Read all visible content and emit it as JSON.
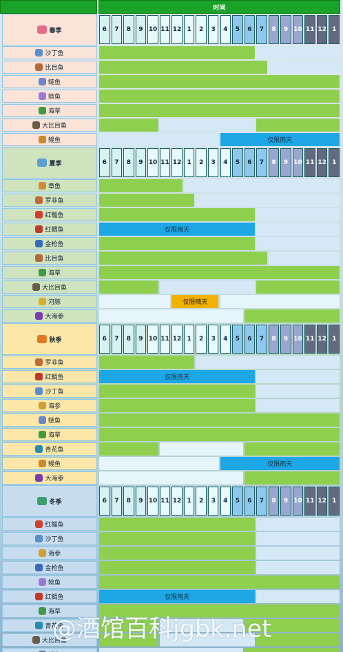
{
  "header": {
    "time_label": "时间"
  },
  "hours": [
    "6",
    "7",
    "8",
    "9",
    "10",
    "11",
    "12",
    "1",
    "2",
    "3",
    "4",
    "5",
    "6",
    "7",
    "8",
    "9",
    "10",
    "11",
    "12",
    "1"
  ],
  "colors": {
    "spring": "#fbe3d8",
    "summer": "#cfe3bf",
    "autumn": "#fde7a8",
    "winter": "#c8dcef",
    "active": "#8fcf4e",
    "inactive": "#d4e8f6",
    "rain": "#1da7e5",
    "sun": "#f2b100",
    "header": "#1aa229"
  },
  "seasons": [
    {
      "name": "春季",
      "icon": "spring-icon",
      "rows": [
        {
          "fish": "沙丁鱼",
          "icon": "sardine-icon",
          "segs": [
            [
              0,
              13,
              "on"
            ],
            [
              13,
              20,
              "off"
            ]
          ]
        },
        {
          "fish": "比目鱼",
          "icon": "flounder-icon",
          "segs": [
            [
              0,
              14,
              "on"
            ],
            [
              14,
              20,
              "off"
            ]
          ]
        },
        {
          "fish": "鲢鱼",
          "icon": "anchovy-icon",
          "segs": [
            [
              0,
              20,
              "on"
            ]
          ]
        },
        {
          "fish": "鲶鱼",
          "icon": "herring-icon",
          "segs": [
            [
              0,
              20,
              "on"
            ]
          ]
        },
        {
          "fish": "海草",
          "icon": "seaweed-icon",
          "segs": [
            [
              0,
              20,
              "on"
            ]
          ]
        },
        {
          "fish": "大比目鱼",
          "icon": "halibut-icon",
          "segs": [
            [
              0,
              5,
              "on"
            ],
            [
              5,
              13,
              "off"
            ],
            [
              13,
              20,
              "on"
            ]
          ]
        },
        {
          "fish": "鳗鱼",
          "icon": "eel-icon",
          "segs": [
            [
              0,
              10,
              "off"
            ],
            [
              10,
              20,
              "rain"
            ]
          ],
          "note": "仅限雨天"
        }
      ]
    },
    {
      "name": "夏季",
      "icon": "summer-icon",
      "rows": [
        {
          "fish": "章鱼",
          "icon": "octopus-icon",
          "segs": [
            [
              0,
              7,
              "on"
            ],
            [
              7,
              20,
              "off"
            ]
          ]
        },
        {
          "fish": "罗非鱼",
          "icon": "tilapia-icon",
          "segs": [
            [
              0,
              8,
              "on"
            ],
            [
              8,
              20,
              "off"
            ]
          ]
        },
        {
          "fish": "红鲻鱼",
          "icon": "red-mullet-icon",
          "segs": [
            [
              0,
              13,
              "on"
            ],
            [
              13,
              20,
              "off"
            ]
          ]
        },
        {
          "fish": "红鲷鱼",
          "icon": "red-snapper-icon",
          "segs": [
            [
              0,
              13,
              "rain"
            ],
            [
              13,
              20,
              "off"
            ]
          ],
          "note": "仅限雨天"
        },
        {
          "fish": "金枪鱼",
          "icon": "tuna-icon",
          "segs": [
            [
              0,
              13,
              "on"
            ],
            [
              13,
              20,
              "off"
            ]
          ]
        },
        {
          "fish": "比目鱼",
          "icon": "flounder-icon",
          "segs": [
            [
              0,
              14,
              "on"
            ],
            [
              14,
              20,
              "off"
            ]
          ]
        },
        {
          "fish": "海草",
          "icon": "seaweed-icon",
          "segs": [
            [
              0,
              20,
              "on"
            ]
          ]
        },
        {
          "fish": "大比目鱼",
          "icon": "halibut-icon",
          "segs": [
            [
              0,
              5,
              "on"
            ],
            [
              5,
              13,
              "off"
            ],
            [
              13,
              20,
              "on"
            ]
          ]
        },
        {
          "fish": "河豚",
          "icon": "pufferfish-icon",
          "segs": [
            [
              0,
              6,
              "offlight"
            ],
            [
              6,
              10,
              "sun"
            ],
            [
              10,
              20,
              "offlight"
            ]
          ],
          "note": "仅限晴天"
        },
        {
          "fish": "大海参",
          "icon": "sea-cucumber-icon",
          "segs": [
            [
              0,
              12,
              "offlight"
            ],
            [
              12,
              20,
              "on"
            ]
          ]
        }
      ]
    },
    {
      "name": "秋季",
      "icon": "autumn-icon",
      "rows": [
        {
          "fish": "罗非鱼",
          "icon": "tilapia-icon",
          "segs": [
            [
              0,
              8,
              "on"
            ],
            [
              8,
              20,
              "off"
            ]
          ]
        },
        {
          "fish": "红鲷鱼",
          "icon": "red-snapper-icon",
          "segs": [
            [
              0,
              13,
              "rain"
            ],
            [
              13,
              20,
              "off"
            ]
          ],
          "note": "仅限雨天"
        },
        {
          "fish": "沙丁鱼",
          "icon": "sardine-icon",
          "segs": [
            [
              0,
              13,
              "on"
            ],
            [
              13,
              20,
              "off"
            ]
          ]
        },
        {
          "fish": "海参",
          "icon": "sea-cucumber-small-icon",
          "segs": [
            [
              0,
              13,
              "on"
            ],
            [
              13,
              20,
              "off"
            ]
          ]
        },
        {
          "fish": "鲢鱼",
          "icon": "anchovy-icon",
          "segs": [
            [
              0,
              20,
              "on"
            ]
          ]
        },
        {
          "fish": "海草",
          "icon": "seaweed-icon",
          "segs": [
            [
              0,
              20,
              "on"
            ]
          ]
        },
        {
          "fish": "青花鱼",
          "icon": "mackerel-icon",
          "segs": [
            [
              0,
              5,
              "on"
            ],
            [
              5,
              12,
              "offlight"
            ],
            [
              12,
              20,
              "on"
            ]
          ]
        },
        {
          "fish": "鳗鱼",
          "icon": "eel-icon",
          "segs": [
            [
              0,
              10,
              "offlight"
            ],
            [
              10,
              20,
              "rain"
            ]
          ],
          "note": "仅限雨天"
        },
        {
          "fish": "大海参",
          "icon": "sea-cucumber-icon",
          "segs": [
            [
              0,
              12,
              "offlight"
            ],
            [
              12,
              20,
              "on"
            ]
          ]
        }
      ]
    },
    {
      "name": "冬季",
      "icon": "winter-icon",
      "rows": [
        {
          "fish": "红鲻鱼",
          "icon": "red-mullet-icon",
          "segs": [
            [
              0,
              13,
              "on"
            ],
            [
              13,
              20,
              "off"
            ]
          ]
        },
        {
          "fish": "沙丁鱼",
          "icon": "sardine-icon",
          "segs": [
            [
              0,
              13,
              "on"
            ],
            [
              13,
              20,
              "off"
            ]
          ]
        },
        {
          "fish": "海参",
          "icon": "sea-cucumber-small-icon",
          "segs": [
            [
              0,
              13,
              "on"
            ],
            [
              13,
              20,
              "off"
            ]
          ]
        },
        {
          "fish": "金枪鱼",
          "icon": "tuna-icon",
          "segs": [
            [
              0,
              13,
              "on"
            ],
            [
              13,
              20,
              "off"
            ]
          ]
        },
        {
          "fish": "鲶鱼",
          "icon": "herring-icon",
          "segs": [
            [
              0,
              20,
              "on"
            ]
          ]
        },
        {
          "fish": "红鲷鱼",
          "icon": "red-snapper-icon",
          "segs": [
            [
              0,
              13,
              "rain"
            ],
            [
              13,
              20,
              "off"
            ]
          ],
          "note": "仅限雨天"
        },
        {
          "fish": "海草",
          "icon": "seaweed-icon",
          "segs": [
            [
              0,
              20,
              "on"
            ]
          ]
        },
        {
          "fish": "青花鱼",
          "icon": "mackerel-icon",
          "segs": [
            [
              0,
              5,
              "on"
            ],
            [
              5,
              12,
              "off"
            ],
            [
              12,
              20,
              "on"
            ]
          ]
        },
        {
          "fish": "大比目鱼",
          "icon": "halibut-icon",
          "segs": [
            [
              0,
              5,
              "on"
            ],
            [
              5,
              13,
              "off"
            ],
            [
              13,
              20,
              "on"
            ]
          ]
        },
        {
          "fish": "鱿鱼",
          "icon": "squid-icon",
          "segs": [
            [
              0,
              12,
              "off"
            ],
            [
              12,
              20,
              "on"
            ]
          ]
        }
      ]
    }
  ],
  "watermark": "@酒馆百科jgbk.net"
}
